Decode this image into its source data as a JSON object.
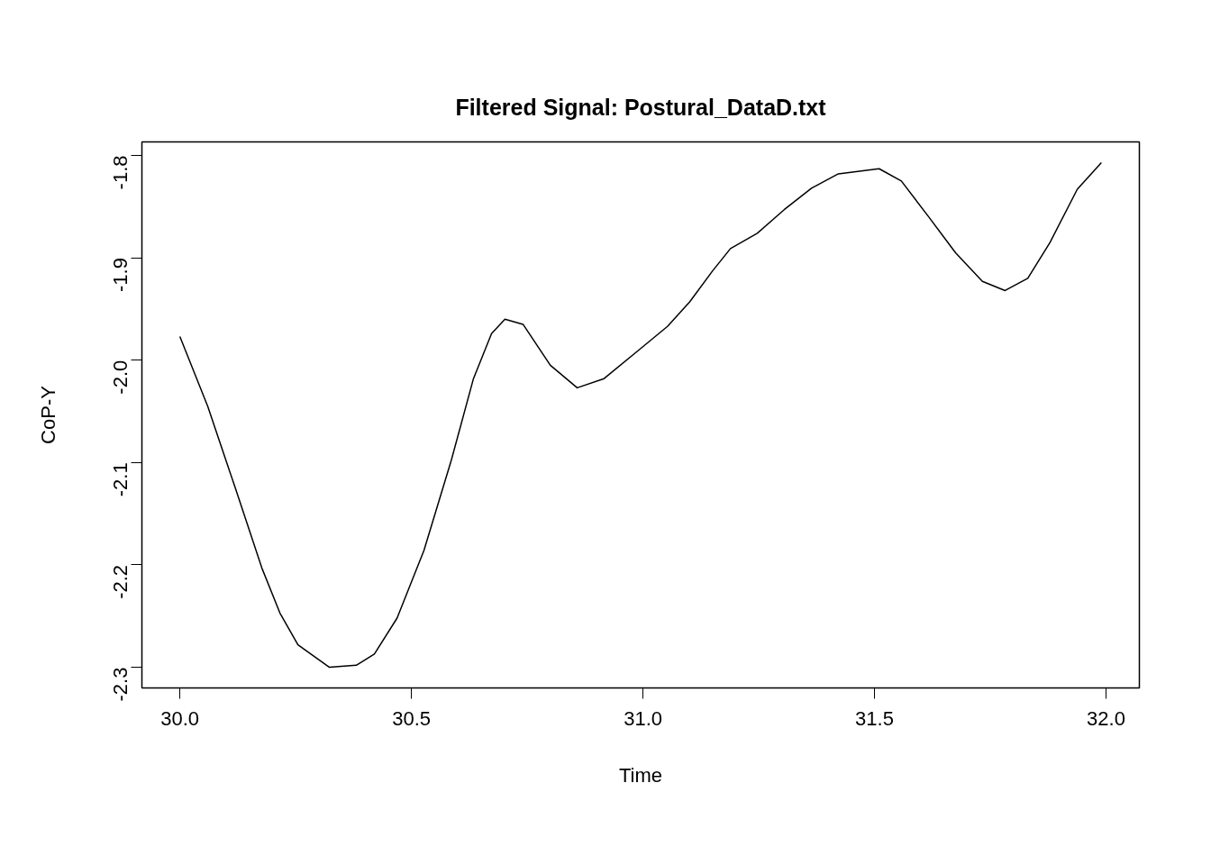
{
  "chart_data": {
    "type": "line",
    "title": "Filtered Signal: Postural_DataD.txt",
    "xlabel": "Time",
    "ylabel": "CoP-Y",
    "x": [
      30.0,
      30.06,
      30.119,
      30.177,
      30.216,
      30.255,
      30.323,
      30.381,
      30.42,
      30.469,
      30.527,
      30.586,
      30.634,
      30.673,
      30.702,
      30.741,
      30.8,
      30.858,
      30.916,
      30.994,
      31.053,
      31.101,
      31.15,
      31.189,
      31.247,
      31.305,
      31.364,
      31.422,
      31.51,
      31.558,
      31.617,
      31.675,
      31.733,
      31.782,
      31.831,
      31.879,
      31.938,
      31.99
    ],
    "series": [
      {
        "color": "#000000",
        "values": [
          -1.977,
          -2.045,
          -2.124,
          -2.203,
          -2.247,
          -2.278,
          -2.3,
          -2.298,
          -2.287,
          -2.252,
          -2.186,
          -2.098,
          -2.018,
          -1.974,
          -1.96,
          -1.965,
          -2.005,
          -2.027,
          -2.018,
          -1.989,
          -1.967,
          -1.943,
          -1.913,
          -1.891,
          -1.876,
          -1.853,
          -1.832,
          -1.818,
          -1.813,
          -1.825,
          -1.86,
          -1.895,
          -1.923,
          -1.932,
          -1.92,
          -1.885,
          -1.833,
          -1.807
        ]
      }
    ],
    "xlim": [
      29.918,
      32.072
    ],
    "ylim": [
      -2.3202,
      -1.7868
    ],
    "xticks": [
      {
        "value": 30,
        "label": "30.0"
      },
      30.5,
      {
        "value": 31,
        "label": "31.0"
      },
      31.5,
      {
        "value": 32,
        "label": "32.0"
      }
    ],
    "yticks": [
      -2.3,
      -2.2,
      -2.1,
      {
        "value": -2.0,
        "label": "-2.0"
      },
      -1.9,
      -1.8
    ],
    "grid": false,
    "marker": "none",
    "line_style": "solid"
  }
}
